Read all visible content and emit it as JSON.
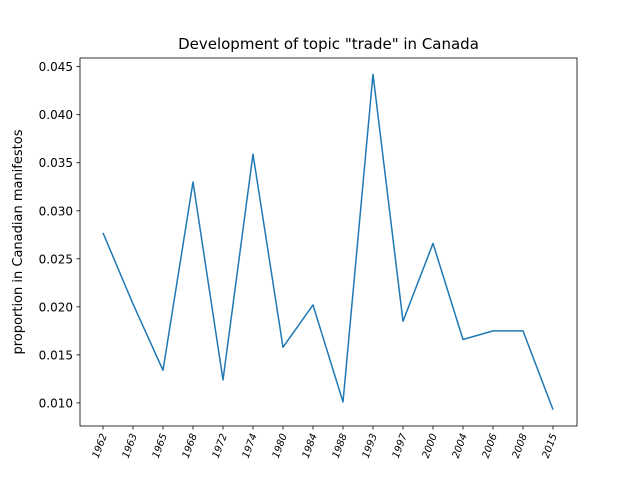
{
  "chart_data": {
    "type": "line",
    "title": "Development of topic \"trade\" in Canada",
    "xlabel": "",
    "ylabel": "proportion in Canadian manifestos",
    "categories": [
      "1962",
      "1963",
      "1965",
      "1968",
      "1972",
      "1974",
      "1980",
      "1984",
      "1988",
      "1993",
      "1997",
      "2000",
      "2004",
      "2006",
      "2008",
      "2015"
    ],
    "values": [
      0.0277,
      0.0203,
      0.0134,
      0.033,
      0.0124,
      0.0359,
      0.0158,
      0.0202,
      0.0101,
      0.0442,
      0.0185,
      0.0266,
      0.0166,
      0.0175,
      0.0175,
      0.0093
    ],
    "ylim": [
      0.0076,
      0.0459
    ],
    "yticks": [
      "0.010",
      "0.015",
      "0.020",
      "0.025",
      "0.030",
      "0.035",
      "0.040",
      "0.045"
    ],
    "grid": false,
    "line_color": "#1f77b4"
  }
}
